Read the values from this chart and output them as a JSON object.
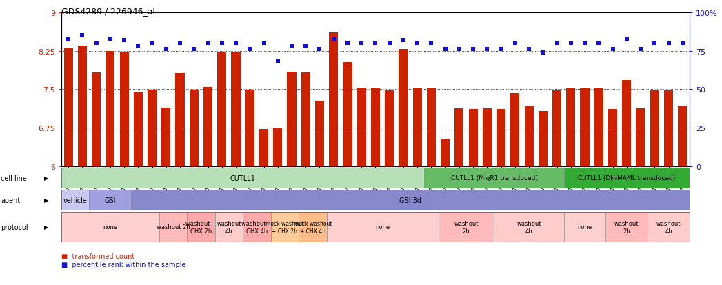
{
  "title": "GDS4289 / 226946_at",
  "samples": [
    "GSM731500",
    "GSM731501",
    "GSM731502",
    "GSM731503",
    "GSM731504",
    "GSM731505",
    "GSM731518",
    "GSM731519",
    "GSM731520",
    "GSM731506",
    "GSM731507",
    "GSM731508",
    "GSM731509",
    "GSM731510",
    "GSM731511",
    "GSM731512",
    "GSM731513",
    "GSM731514",
    "GSM731515",
    "GSM731516",
    "GSM731517",
    "GSM731521",
    "GSM731522",
    "GSM731523",
    "GSM731524",
    "GSM731525",
    "GSM731526",
    "GSM731527",
    "GSM731528",
    "GSM731529",
    "GSM731531",
    "GSM731532",
    "GSM731533",
    "GSM731534",
    "GSM731535",
    "GSM731536",
    "GSM731537",
    "GSM731538",
    "GSM731539",
    "GSM731540",
    "GSM731541",
    "GSM731542",
    "GSM731543",
    "GSM731544",
    "GSM731545"
  ],
  "bar_values": [
    8.3,
    8.35,
    7.83,
    8.24,
    8.22,
    7.44,
    7.49,
    7.14,
    7.82,
    7.49,
    7.54,
    8.23,
    8.23,
    7.49,
    6.73,
    6.74,
    7.84,
    7.83,
    7.28,
    8.6,
    8.03,
    7.53,
    7.52,
    7.48,
    8.28,
    7.52,
    7.52,
    6.53,
    7.13,
    7.12,
    7.13,
    7.12,
    7.43,
    7.18,
    7.08,
    7.48,
    7.52,
    7.52,
    7.52,
    7.12,
    7.68,
    7.13,
    7.48,
    7.48,
    7.18
  ],
  "percentile_values": [
    83,
    85,
    80,
    83,
    82,
    78,
    80,
    76,
    80,
    76,
    80,
    80,
    80,
    76,
    80,
    68,
    78,
    78,
    76,
    83,
    80,
    80,
    80,
    80,
    82,
    80,
    80,
    76,
    76,
    76,
    76,
    76,
    80,
    76,
    74,
    80,
    80,
    80,
    80,
    76,
    83,
    76,
    80,
    80,
    80
  ],
  "ylim_left": [
    6.0,
    9.0
  ],
  "yticks_left": [
    6.0,
    6.75,
    7.5,
    8.25,
    9.0
  ],
  "ytick_labels_left": [
    "6",
    "6.75",
    "7.5",
    "8.25",
    "9"
  ],
  "ylim_right": [
    0,
    100
  ],
  "yticks_right": [
    0,
    25,
    50,
    75,
    100
  ],
  "ytick_labels_right": [
    "0",
    "25",
    "50",
    "75",
    "100%"
  ],
  "bar_color": "#cc2200",
  "dot_color": "#1111cc",
  "dotted_lines": [
    6.75,
    7.5,
    8.25
  ],
  "cell_line_segments": [
    {
      "label": "CUTLL1",
      "start": 0,
      "end": 26,
      "color": "#b8e0b8"
    },
    {
      "label": "CUTLL1 (MigR1 transduced)",
      "start": 26,
      "end": 36,
      "color": "#66bb66"
    },
    {
      "label": "CUTLL1 (DN-MAML transduced)",
      "start": 36,
      "end": 45,
      "color": "#33aa33"
    }
  ],
  "agent_segments": [
    {
      "label": "vehicle",
      "start": 0,
      "end": 2,
      "color": "#c8c8f0"
    },
    {
      "label": "GSI",
      "start": 2,
      "end": 5,
      "color": "#a0a0e0"
    },
    {
      "label": "GSI 3d",
      "start": 5,
      "end": 45,
      "color": "#8888cc"
    }
  ],
  "protocol_segments": [
    {
      "label": "none",
      "start": 0,
      "end": 7,
      "color": "#ffd0d0"
    },
    {
      "label": "washout 2h",
      "start": 7,
      "end": 9,
      "color": "#ffbbbb"
    },
    {
      "label": "washout +\nCHX 2h",
      "start": 9,
      "end": 11,
      "color": "#ffaaaa"
    },
    {
      "label": "washout\n4h",
      "start": 11,
      "end": 13,
      "color": "#ffcccc"
    },
    {
      "label": "washout +\nCHX 4h",
      "start": 13,
      "end": 15,
      "color": "#ffaaaa"
    },
    {
      "label": "mock washout\n+ CHX 2h",
      "start": 15,
      "end": 17,
      "color": "#ffcc99"
    },
    {
      "label": "mock washout\n+ CHX 4h",
      "start": 17,
      "end": 19,
      "color": "#ffbb88"
    },
    {
      "label": "none",
      "start": 19,
      "end": 27,
      "color": "#ffd0d0"
    },
    {
      "label": "washout\n2h",
      "start": 27,
      "end": 31,
      "color": "#ffbbbb"
    },
    {
      "label": "washout\n4h",
      "start": 31,
      "end": 36,
      "color": "#ffcccc"
    },
    {
      "label": "none",
      "start": 36,
      "end": 39,
      "color": "#ffd0d0"
    },
    {
      "label": "washout\n2h",
      "start": 39,
      "end": 42,
      "color": "#ffbbbb"
    },
    {
      "label": "washout\n4h",
      "start": 42,
      "end": 45,
      "color": "#ffcccc"
    }
  ],
  "legend_items": [
    {
      "label": "transformed count",
      "color": "#cc2200"
    },
    {
      "label": "percentile rank within the sample",
      "color": "#1111cc"
    }
  ],
  "row_labels": [
    "cell line",
    "agent",
    "protocol"
  ]
}
